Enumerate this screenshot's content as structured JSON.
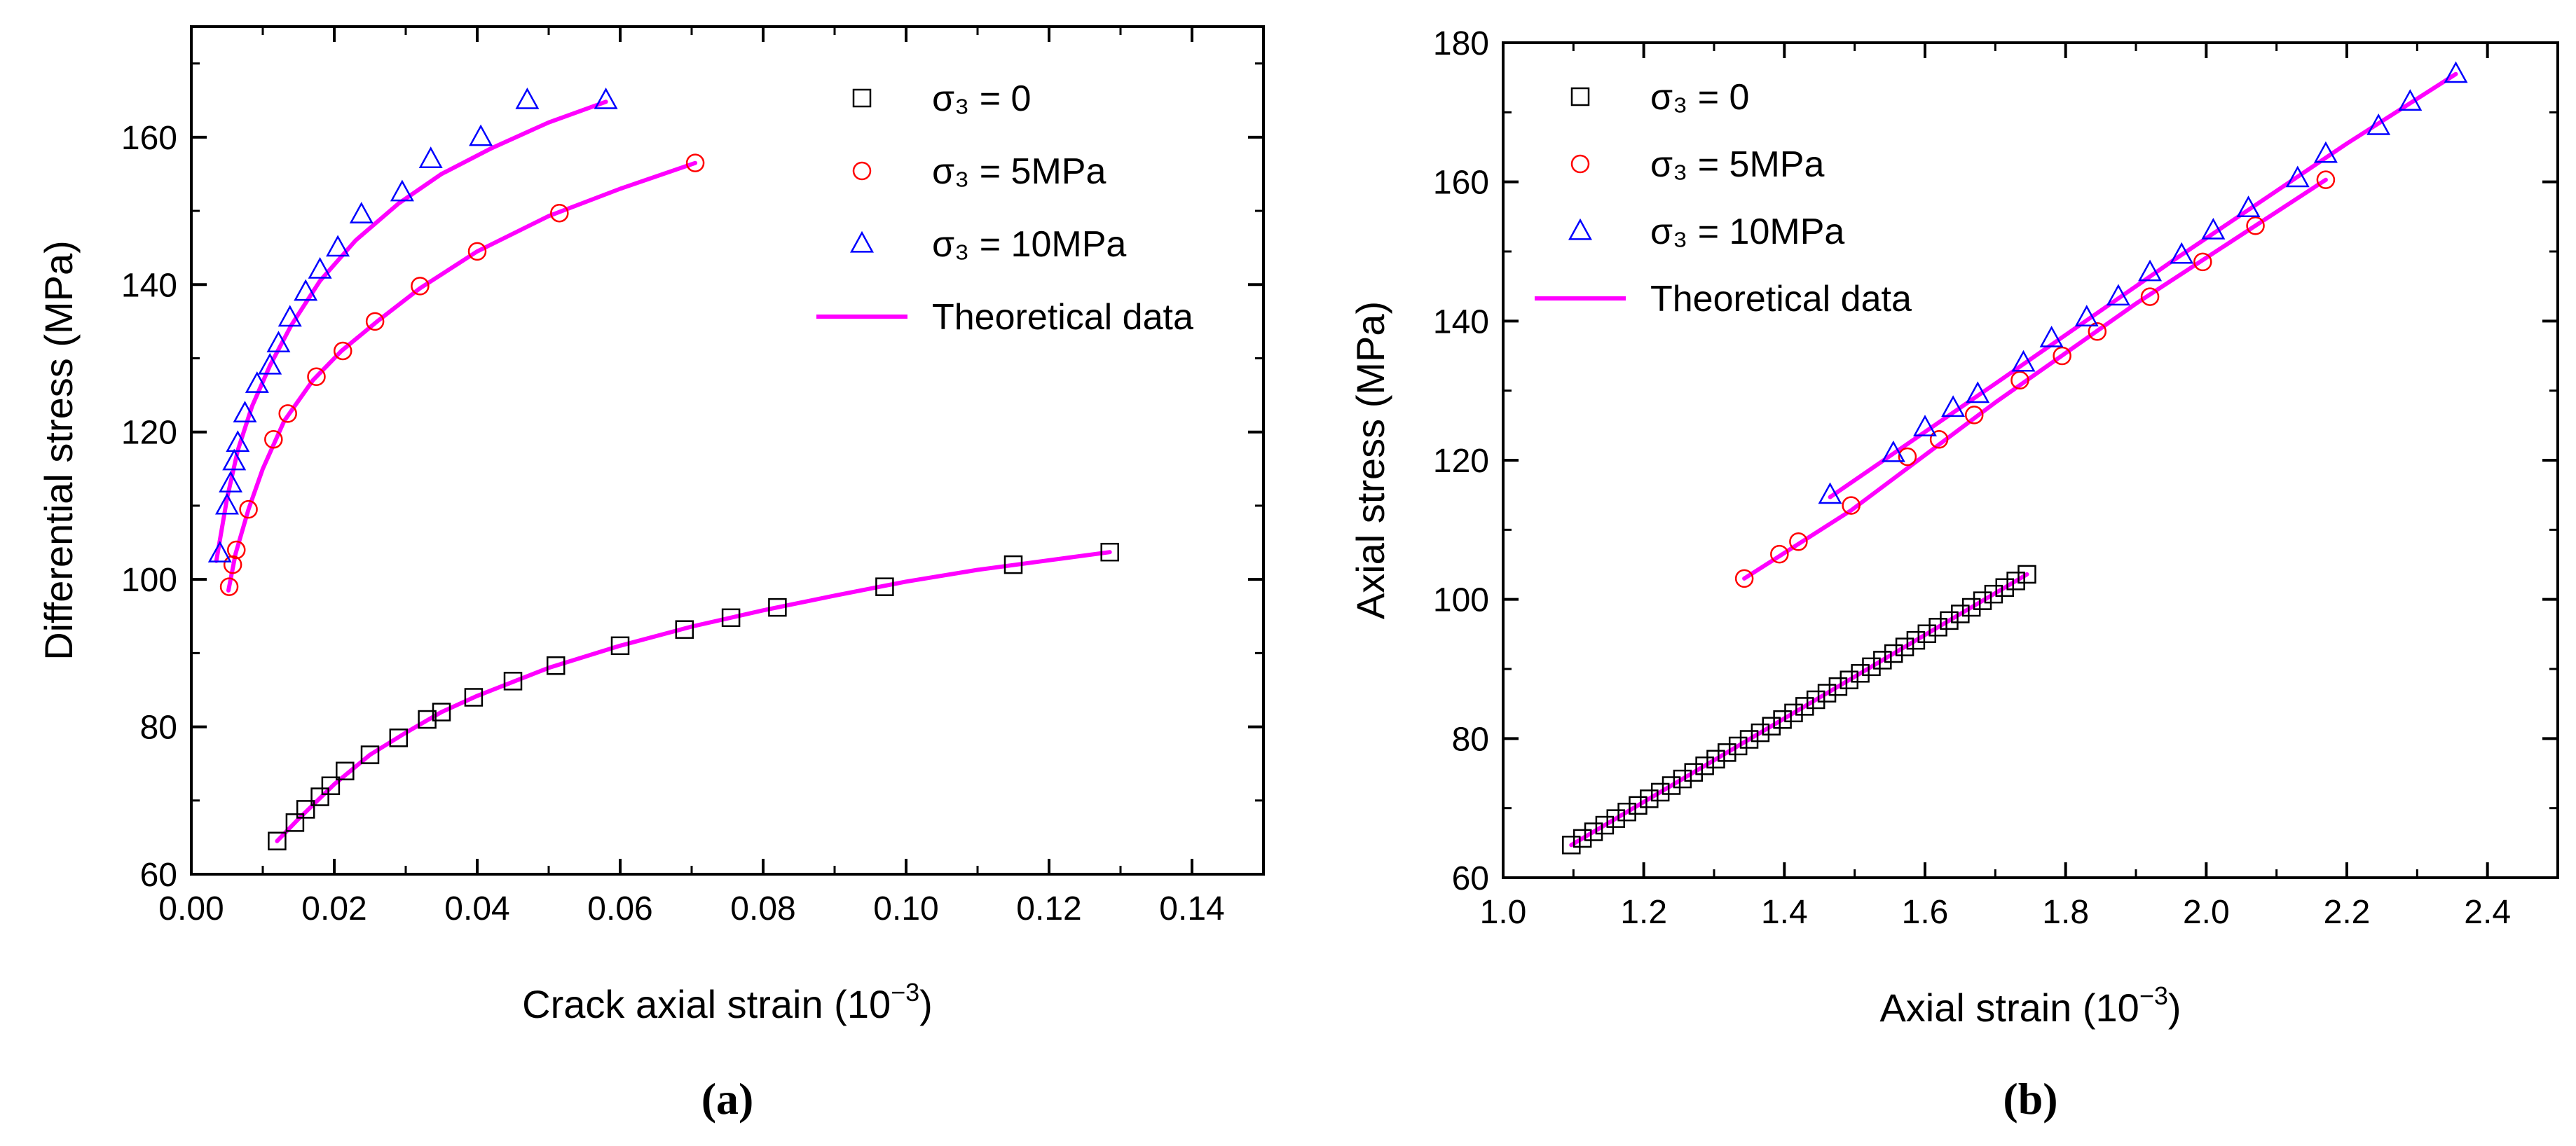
{
  "colors": {
    "s0": "#000000",
    "s5": "#ff0000",
    "s10": "#0000ff",
    "theory": "#ff00ff"
  },
  "chart_data": [
    {
      "type": "scatter",
      "panel_label": "(a)",
      "xlabel": "Crack axial strain (10",
      "xlabel_exp": "−3",
      "xlabel_tail": ")",
      "ylabel": "Differential stress (MPa)",
      "xlim": [
        0,
        0.15
      ],
      "ylim": [
        60,
        175
      ],
      "xticks": [
        0.0,
        0.02,
        0.04,
        0.06,
        0.08,
        0.1,
        0.12,
        0.14
      ],
      "xtick_labels": [
        "0.00",
        "0.02",
        "0.04",
        "0.06",
        "0.08",
        "0.10",
        "0.12",
        "0.14"
      ],
      "yticks": [
        60,
        80,
        100,
        120,
        140,
        160
      ],
      "ytick_labels": [
        "60",
        "80",
        "100",
        "120",
        "140",
        "160"
      ],
      "legend": [
        "σ₃ = 0",
        "σ₃ = 5MPa",
        "σ₃ = 10MPa",
        "Theoretical data"
      ],
      "series": [
        {
          "name": "σ3 = 0",
          "marker": "square",
          "color": "#000000",
          "x": [
            0.012,
            0.0145,
            0.016,
            0.018,
            0.0195,
            0.0215,
            0.025,
            0.029,
            0.033,
            0.035,
            0.0395,
            0.045,
            0.051,
            0.06,
            0.069,
            0.0755,
            0.082,
            0.097,
            0.115,
            0.1285
          ],
          "y": [
            64.5,
            67,
            68.8,
            70.5,
            72,
            74,
            76.2,
            78.5,
            81,
            82,
            84,
            86.2,
            88.3,
            91,
            93.2,
            94.8,
            96.2,
            99,
            102,
            103.7
          ]
        },
        {
          "name": "σ3 = 5MPa",
          "marker": "circle",
          "color": "#ff0000",
          "x": [
            0.0053,
            0.0058,
            0.0063,
            0.008,
            0.0115,
            0.0135,
            0.0175,
            0.0212,
            0.0257,
            0.032,
            0.04,
            0.0515,
            0.0705
          ],
          "y": [
            99,
            102,
            104,
            109.5,
            119,
            122.5,
            127.5,
            131,
            135,
            139.8,
            144.5,
            149.7,
            156.5
          ]
        },
        {
          "name": "σ3 = 10MPa",
          "marker": "triangle",
          "color": "#0000ff",
          "x": [
            0.004,
            0.005,
            0.0055,
            0.006,
            0.0065,
            0.0075,
            0.0092,
            0.011,
            0.0122,
            0.0138,
            0.016,
            0.018,
            0.0205,
            0.0238,
            0.0295,
            0.0335,
            0.0405,
            0.047,
            0.058
          ],
          "y": [
            103.5,
            110,
            113,
            116,
            118.5,
            122.5,
            126.5,
            129,
            132,
            135.5,
            139,
            142,
            145,
            149.5,
            152.5,
            157,
            160,
            165,
            165
          ]
        }
      ],
      "theoretical_curves": [
        {
          "name": "fit σ3=0",
          "x": [
            0.012,
            0.015,
            0.02,
            0.025,
            0.03,
            0.035,
            0.04,
            0.05,
            0.06,
            0.07,
            0.08,
            0.09,
            0.1,
            0.11,
            0.12,
            0.1285
          ],
          "y": [
            64.5,
            67.5,
            72.2,
            76.2,
            79.2,
            82,
            84.2,
            88,
            91,
            93.6,
            95.8,
            97.8,
            99.7,
            101.3,
            102.6,
            103.7
          ]
        },
        {
          "name": "fit σ3=5MPa",
          "x": [
            0.0052,
            0.0062,
            0.008,
            0.01,
            0.013,
            0.017,
            0.021,
            0.026,
            0.032,
            0.04,
            0.05,
            0.06,
            0.0705
          ],
          "y": [
            98.5,
            103.5,
            109.5,
            115,
            121.5,
            127,
            131,
            135,
            139.5,
            144.5,
            149.3,
            153,
            156.5
          ]
        },
        {
          "name": "fit σ3=10MPa",
          "x": [
            0.0035,
            0.005,
            0.0065,
            0.0085,
            0.011,
            0.014,
            0.018,
            0.023,
            0.029,
            0.035,
            0.042,
            0.05,
            0.058
          ],
          "y": [
            102.5,
            111,
            117.5,
            123.5,
            129,
            134.5,
            140.5,
            146,
            151,
            155,
            158.5,
            162,
            164.8
          ]
        }
      ]
    },
    {
      "type": "scatter",
      "panel_label": "(b)",
      "xlabel": "Axial strain (10",
      "xlabel_exp": "−3",
      "xlabel_tail": ")",
      "ylabel": "Axial stress (MPa)",
      "xlim": [
        1.0,
        2.5
      ],
      "ylim": [
        60,
        180
      ],
      "xticks": [
        1.0,
        1.2,
        1.4,
        1.6,
        1.8,
        2.0,
        2.2,
        2.4
      ],
      "xtick_labels": [
        "1.0",
        "1.2",
        "1.4",
        "1.6",
        "1.8",
        "2.0",
        "2.2",
        "2.4"
      ],
      "yticks": [
        60,
        80,
        100,
        120,
        140,
        160,
        180
      ],
      "ytick_labels": [
        "60",
        "80",
        "100",
        "120",
        "140",
        "160",
        "180"
      ],
      "legend": [
        "σ₃ = 0",
        "σ₃ = 5MPa",
        "σ₃ = 10MPa",
        "Theoretical data"
      ],
      "series": [
        {
          "name": "σ3 = 0",
          "marker": "square",
          "color": "#000000",
          "x_start": 1.097,
          "x_end": 1.745,
          "y_start": 64.7,
          "y_end": 103.6,
          "count": 42
        },
        {
          "name": "σ3 = 5MPa",
          "marker": "circle",
          "color": "#ff0000",
          "x": [
            1.343,
            1.393,
            1.42,
            1.495,
            1.575,
            1.62,
            1.67,
            1.735,
            1.795,
            1.845,
            1.92,
            1.995,
            2.07,
            2.17
          ],
          "y": [
            103,
            106.5,
            108.3,
            113.5,
            120.5,
            123,
            126.5,
            131.5,
            135,
            138.5,
            143.5,
            148.5,
            153.7,
            160.3
          ]
        },
        {
          "name": "σ3 = 10MPa",
          "marker": "triangle",
          "color": "#0000ff",
          "x": [
            1.465,
            1.555,
            1.6,
            1.64,
            1.675,
            1.74,
            1.78,
            1.83,
            1.875,
            1.92,
            1.965,
            2.01,
            2.06,
            2.13,
            2.17,
            2.245,
            2.29,
            2.355
          ],
          "y": [
            115,
            121,
            124.7,
            127.5,
            129.5,
            134,
            137.5,
            140.5,
            143.5,
            147,
            149.5,
            153,
            156.2,
            160.5,
            164,
            168,
            171.5,
            175.5
          ]
        }
      ],
      "theoretical_curves": [
        {
          "name": "fit σ3=0",
          "x": [
            1.097,
            1.745
          ],
          "y": [
            64.7,
            103.6
          ]
        },
        {
          "name": "fit σ3=5MPa",
          "x": [
            1.343,
            1.495,
            1.7,
            1.9,
            2.17
          ],
          "y": [
            103,
            112.8,
            128.3,
            142.5,
            160.3
          ]
        },
        {
          "name": "fit σ3=10MPa",
          "x": [
            1.465,
            1.7,
            1.95,
            2.2,
            2.355
          ],
          "y": [
            114.7,
            131,
            148.5,
            165.5,
            175.5
          ]
        }
      ]
    }
  ]
}
